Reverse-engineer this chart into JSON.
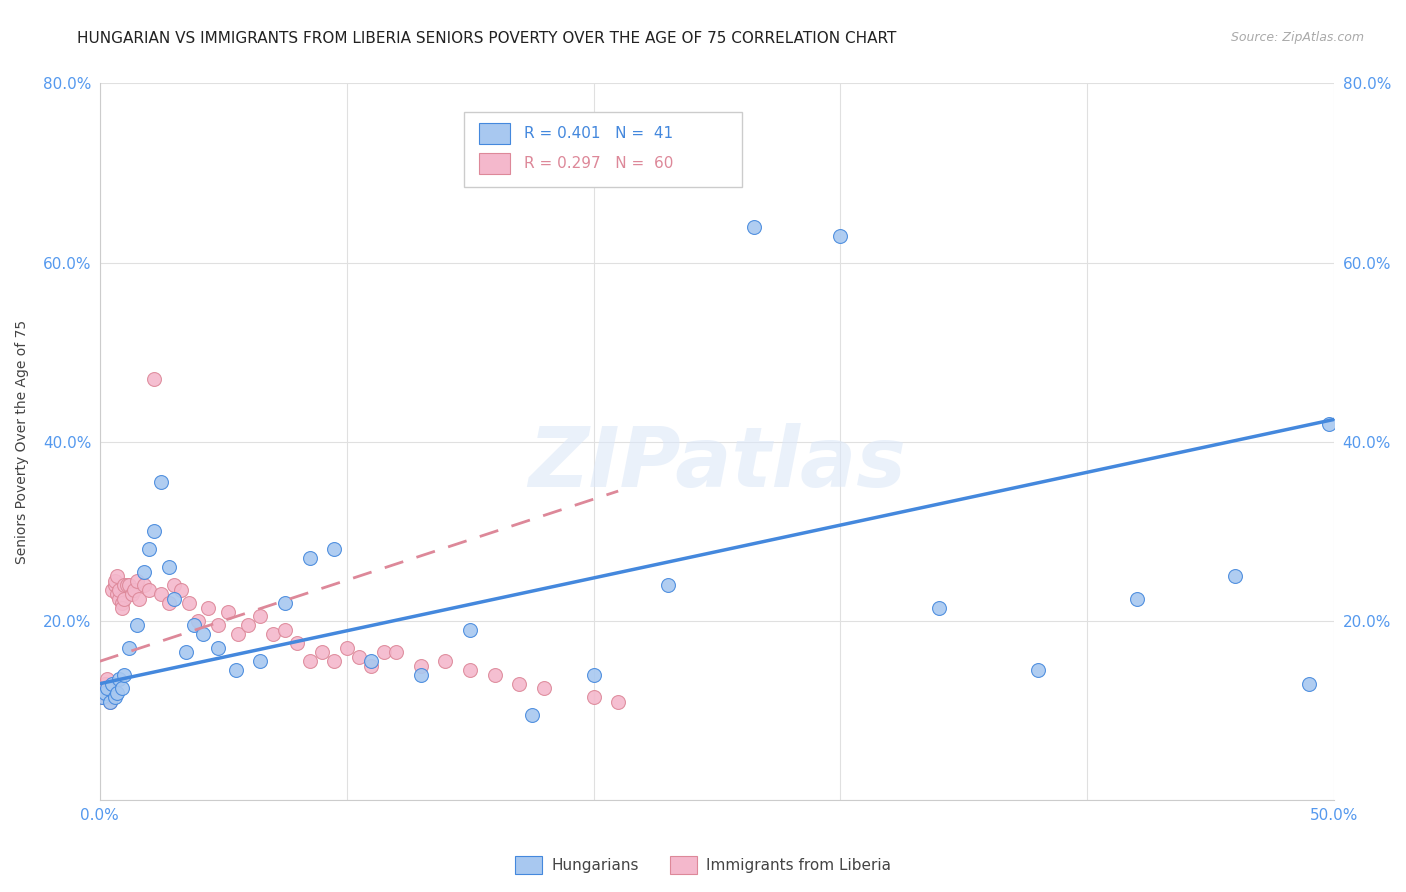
{
  "title": "HUNGARIAN VS IMMIGRANTS FROM LIBERIA SENIORS POVERTY OVER THE AGE OF 75 CORRELATION CHART",
  "source": "Source: ZipAtlas.com",
  "ylabel": "Seniors Poverty Over the Age of 75",
  "xlim": [
    0.0,
    0.5
  ],
  "ylim": [
    0.0,
    0.8
  ],
  "xticks": [
    0.0,
    0.1,
    0.2,
    0.3,
    0.4,
    0.5
  ],
  "xticklabels": [
    "0.0%",
    "",
    "",
    "",
    "",
    "50.0%"
  ],
  "yticks": [
    0.0,
    0.2,
    0.4,
    0.6,
    0.8
  ],
  "yticklabels": [
    "",
    "20.0%",
    "40.0%",
    "60.0%",
    "80.0%"
  ],
  "legend_labels": [
    "Hungarians",
    "Immigrants from Liberia"
  ],
  "blue_color": "#a8c8f0",
  "pink_color": "#f4b8cc",
  "blue_line_color": "#4488dd",
  "pink_line_color": "#dd8899",
  "r_blue": 0.401,
  "n_blue": 41,
  "r_pink": 0.297,
  "n_pink": 60,
  "blue_x": [
    0.001,
    0.002,
    0.003,
    0.004,
    0.005,
    0.006,
    0.007,
    0.008,
    0.009,
    0.01,
    0.012,
    0.015,
    0.018,
    0.02,
    0.022,
    0.025,
    0.028,
    0.03,
    0.035,
    0.038,
    0.042,
    0.048,
    0.055,
    0.065,
    0.075,
    0.085,
    0.095,
    0.11,
    0.13,
    0.15,
    0.175,
    0.2,
    0.23,
    0.265,
    0.3,
    0.34,
    0.38,
    0.42,
    0.46,
    0.49,
    0.498
  ],
  "blue_y": [
    0.115,
    0.12,
    0.125,
    0.11,
    0.13,
    0.115,
    0.12,
    0.135,
    0.125,
    0.14,
    0.17,
    0.195,
    0.255,
    0.28,
    0.3,
    0.355,
    0.26,
    0.225,
    0.165,
    0.195,
    0.185,
    0.17,
    0.145,
    0.155,
    0.22,
    0.27,
    0.28,
    0.155,
    0.14,
    0.19,
    0.095,
    0.14,
    0.24,
    0.64,
    0.63,
    0.215,
    0.145,
    0.225,
    0.25,
    0.13,
    0.42
  ],
  "pink_x": [
    0.001,
    0.001,
    0.002,
    0.002,
    0.003,
    0.003,
    0.004,
    0.004,
    0.005,
    0.005,
    0.006,
    0.006,
    0.007,
    0.007,
    0.008,
    0.008,
    0.009,
    0.009,
    0.01,
    0.01,
    0.011,
    0.012,
    0.013,
    0.014,
    0.015,
    0.016,
    0.018,
    0.02,
    0.022,
    0.025,
    0.028,
    0.03,
    0.033,
    0.036,
    0.04,
    0.044,
    0.048,
    0.052,
    0.056,
    0.06,
    0.065,
    0.07,
    0.075,
    0.08,
    0.085,
    0.09,
    0.095,
    0.1,
    0.105,
    0.11,
    0.115,
    0.12,
    0.13,
    0.14,
    0.15,
    0.16,
    0.17,
    0.18,
    0.2,
    0.21
  ],
  "pink_y": [
    0.115,
    0.12,
    0.125,
    0.13,
    0.135,
    0.12,
    0.11,
    0.125,
    0.115,
    0.235,
    0.24,
    0.245,
    0.25,
    0.23,
    0.225,
    0.235,
    0.22,
    0.215,
    0.24,
    0.225,
    0.24,
    0.24,
    0.23,
    0.235,
    0.245,
    0.225,
    0.24,
    0.235,
    0.47,
    0.23,
    0.22,
    0.24,
    0.235,
    0.22,
    0.2,
    0.215,
    0.195,
    0.21,
    0.185,
    0.195,
    0.205,
    0.185,
    0.19,
    0.175,
    0.155,
    0.165,
    0.155,
    0.17,
    0.16,
    0.15,
    0.165,
    0.165,
    0.15,
    0.155,
    0.145,
    0.14,
    0.13,
    0.125,
    0.115,
    0.11
  ],
  "watermark": "ZIPatlas",
  "background_color": "#ffffff",
  "grid_color": "#e0e0e0",
  "tick_color": "#5599ee",
  "title_fontsize": 11,
  "axis_label_fontsize": 10,
  "tick_fontsize": 11,
  "marker_size": 100,
  "blue_line_start_x": 0.0,
  "blue_line_end_x": 0.5,
  "blue_line_start_y": 0.13,
  "blue_line_end_y": 0.425,
  "pink_line_start_x": 0.0,
  "pink_line_end_x": 0.21,
  "pink_line_start_y": 0.155,
  "pink_line_end_y": 0.345
}
